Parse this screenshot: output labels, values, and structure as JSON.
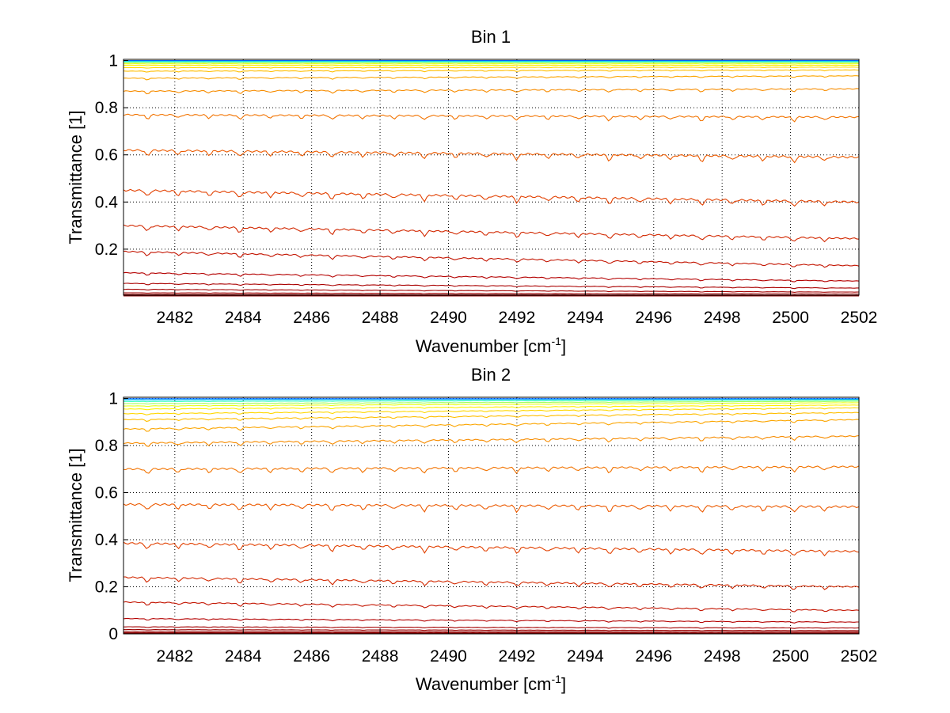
{
  "chart_data": [
    {
      "type": "line",
      "title": "Bin 1",
      "xlabel": "Wavenumber [cm",
      "xlabel_sup": "-1",
      "xlabel_end": "]",
      "ylabel": "Transmittance [1]",
      "xlim": [
        2480.5,
        2502
      ],
      "ylim": [
        0.005,
        1.005
      ],
      "xticks": [
        "2482",
        "2484",
        "2486",
        "2488",
        "2490",
        "2492",
        "2494",
        "2496",
        "2498",
        "2500",
        "2502"
      ],
      "yticks": [
        "0.2",
        "0.4",
        "0.6",
        "0.8",
        "1"
      ],
      "grid": true,
      "line_dips_at": [
        2481.2,
        2482.1,
        2483.0,
        2483.9,
        2484.8,
        2485.7,
        2486.6,
        2487.5,
        2488.4,
        2489.3,
        2490.2,
        2491.1,
        2492.0,
        2492.9,
        2493.8,
        2494.7,
        2495.6,
        2496.5,
        2497.4,
        2498.3,
        2499.2,
        2500.1,
        2501.0
      ],
      "series": [
        {
          "start": 0.002,
          "end": 0.002,
          "color": "#8b0000"
        },
        {
          "start": 0.004,
          "end": 0.003,
          "color": "#8b0000"
        },
        {
          "start": 0.008,
          "end": 0.005,
          "color": "#950000"
        },
        {
          "start": 0.015,
          "end": 0.01,
          "color": "#9a0000"
        },
        {
          "start": 0.03,
          "end": 0.018,
          "color": "#a30000"
        },
        {
          "start": 0.055,
          "end": 0.035,
          "color": "#aa0000"
        },
        {
          "start": 0.1,
          "end": 0.065,
          "color": "#b40000"
        },
        {
          "start": 0.19,
          "end": 0.13,
          "color": "#c31400"
        },
        {
          "start": 0.3,
          "end": 0.245,
          "color": "#d22800"
        },
        {
          "start": 0.45,
          "end": 0.4,
          "color": "#e24000"
        },
        {
          "start": 0.62,
          "end": 0.59,
          "color": "#ec5a00"
        },
        {
          "start": 0.77,
          "end": 0.76,
          "color": "#f27300"
        },
        {
          "start": 0.87,
          "end": 0.88,
          "color": "#f78c00"
        },
        {
          "start": 0.925,
          "end": 0.935,
          "color": "#fba500"
        },
        {
          "start": 0.955,
          "end": 0.96,
          "color": "#ffbe00"
        },
        {
          "start": 0.97,
          "end": 0.972,
          "color": "#ffd700"
        },
        {
          "start": 0.98,
          "end": 0.98,
          "color": "#fff000"
        },
        {
          "start": 0.986,
          "end": 0.986,
          "color": "#e6ff1a"
        },
        {
          "start": 0.991,
          "end": 0.991,
          "color": "#a0ff60"
        },
        {
          "start": 0.995,
          "end": 0.995,
          "color": "#40ffbf"
        },
        {
          "start": 0.998,
          "end": 0.998,
          "color": "#00c0ff"
        },
        {
          "start": 1.0,
          "end": 1.0,
          "color": "#0060ff"
        }
      ]
    },
    {
      "type": "line",
      "title": "Bin 2",
      "xlabel": "Wavenumber [cm",
      "xlabel_sup": "-1",
      "xlabel_end": "]",
      "ylabel": "Transmittance [1]",
      "xlim": [
        2480.5,
        2502
      ],
      "ylim": [
        0,
        1.005
      ],
      "xticks": [
        "2482",
        "2484",
        "2486",
        "2488",
        "2490",
        "2492",
        "2494",
        "2496",
        "2498",
        "2500",
        "2502"
      ],
      "yticks": [
        "0",
        "0.2",
        "0.4",
        "0.6",
        "0.8",
        "1"
      ],
      "grid": true,
      "line_dips_at": [
        2481.2,
        2482.1,
        2483.0,
        2483.9,
        2484.8,
        2485.7,
        2486.6,
        2487.5,
        2488.4,
        2489.3,
        2490.2,
        2491.1,
        2492.0,
        2492.9,
        2493.8,
        2494.7,
        2495.6,
        2496.5,
        2497.4,
        2498.3,
        2499.2,
        2500.1,
        2501.0
      ],
      "series": [
        {
          "start": 0.002,
          "end": 0.002,
          "color": "#8b0000"
        },
        {
          "start": 0.005,
          "end": 0.004,
          "color": "#8b0000"
        },
        {
          "start": 0.01,
          "end": 0.008,
          "color": "#950000"
        },
        {
          "start": 0.018,
          "end": 0.014,
          "color": "#9a0000"
        },
        {
          "start": 0.03,
          "end": 0.025,
          "color": "#a30000"
        },
        {
          "start": 0.065,
          "end": 0.05,
          "color": "#b40000"
        },
        {
          "start": 0.135,
          "end": 0.1,
          "color": "#c31400"
        },
        {
          "start": 0.24,
          "end": 0.2,
          "color": "#d22800"
        },
        {
          "start": 0.385,
          "end": 0.35,
          "color": "#e24000"
        },
        {
          "start": 0.55,
          "end": 0.54,
          "color": "#ec5a00"
        },
        {
          "start": 0.7,
          "end": 0.71,
          "color": "#f27300"
        },
        {
          "start": 0.81,
          "end": 0.84,
          "color": "#f78c00"
        },
        {
          "start": 0.87,
          "end": 0.91,
          "color": "#fba500"
        },
        {
          "start": 0.91,
          "end": 0.94,
          "color": "#ffbe00"
        },
        {
          "start": 0.935,
          "end": 0.96,
          "color": "#ffd700"
        },
        {
          "start": 0.955,
          "end": 0.972,
          "color": "#fff000"
        },
        {
          "start": 0.968,
          "end": 0.982,
          "color": "#e6ff1a"
        },
        {
          "start": 0.978,
          "end": 0.988,
          "color": "#a0ff60"
        },
        {
          "start": 0.987,
          "end": 0.993,
          "color": "#40ffbf"
        },
        {
          "start": 0.994,
          "end": 0.997,
          "color": "#00c0ff"
        },
        {
          "start": 0.999,
          "end": 0.999,
          "color": "#0060ff"
        }
      ]
    }
  ]
}
